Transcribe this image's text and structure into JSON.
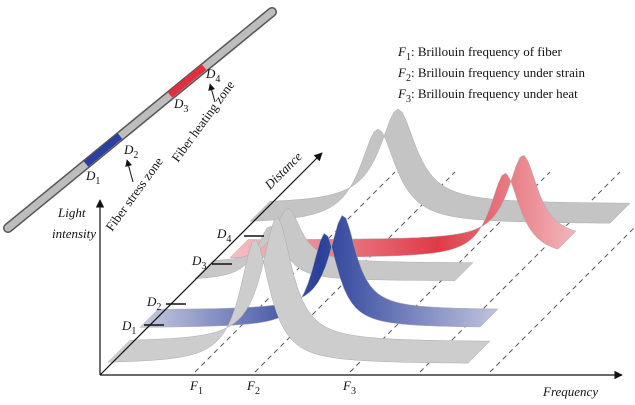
{
  "legend": [
    {
      "symbol": "F",
      "sub": "1",
      "text": ": Brillouin frequency of fiber"
    },
    {
      "symbol": "F",
      "sub": "2",
      "text": ": Brillouin frequency under strain"
    },
    {
      "symbol": "F",
      "sub": "3",
      "text": ": Brillouin frequency under heat"
    }
  ],
  "fiber": {
    "labels": [
      {
        "symbol": "D",
        "sub": "1"
      },
      {
        "symbol": "D",
        "sub": "2"
      },
      {
        "symbol": "D",
        "sub": "3"
      },
      {
        "symbol": "D",
        "sub": "4"
      }
    ],
    "stress_zone": "Fiber stress zone",
    "heating_zone": "Fiber heating zone"
  },
  "axes": {
    "y_label_line1": "Light",
    "y_label_line2": "intensity",
    "distance": "Distance",
    "x_label": "Frequency"
  },
  "distance_marks": [
    {
      "symbol": "D",
      "sub": "1"
    },
    {
      "symbol": "D",
      "sub": "2"
    },
    {
      "symbol": "D",
      "sub": "3"
    },
    {
      "symbol": "D",
      "sub": "4"
    }
  ],
  "frequency_marks": [
    {
      "symbol": "F",
      "sub": "1"
    },
    {
      "symbol": "F",
      "sub": "2"
    },
    {
      "symbol": "F",
      "sub": "3"
    }
  ]
}
